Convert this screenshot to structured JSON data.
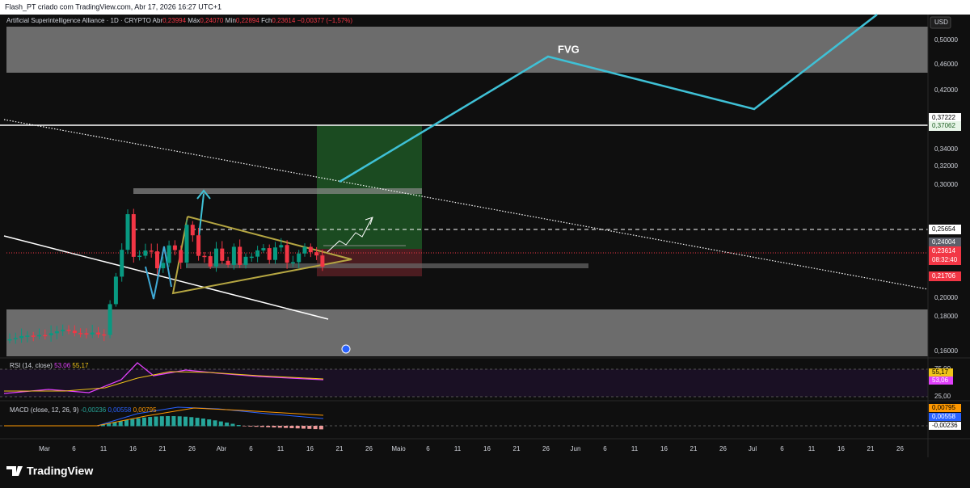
{
  "header": {
    "text": "Flash_PT criado com TradingView.com, Abr 17, 2026 16:27 UTC+1"
  },
  "symbol": {
    "name": "Artificial Superintelligence Alliance · 1D · CRYPTO",
    "open_label": "Abr",
    "open": "0,23994",
    "high_label": "Máx",
    "high": "0,24070",
    "low_label": "Mín",
    "low": "0,22894",
    "close_label": "Fch",
    "close": "0,23614",
    "change": "−0,00377 (−1,57%)"
  },
  "currency": "USD",
  "price_axis": [
    "0,50000",
    "0,46000",
    "0,42000",
    "0,34000",
    "0,32000",
    "0,30000",
    "0,20000",
    "0,18000",
    "0,16000"
  ],
  "price_badges": [
    "0,37222",
    "0,37062",
    "0,25654",
    "0,24004",
    "0,23614",
    "08:32:40",
    "0,21706"
  ],
  "annotation": "FVG",
  "rsi": {
    "label": "RSI (14, close)",
    "value1": "53,06",
    "value2": "55,17",
    "axis": [
      "75,00",
      "25,00"
    ],
    "badges": [
      "55,17",
      "53,06"
    ]
  },
  "macd": {
    "label": "MACD (close, 12, 26, 9)",
    "value1": "-0,00236",
    "value2": "0,00558",
    "value3": "0,00795",
    "badges": [
      "0,00795",
      "0,00558",
      "-0,00236"
    ]
  },
  "date_axis": [
    "Mar",
    "6",
    "11",
    "16",
    "21",
    "26",
    "Abr",
    "6",
    "11",
    "16",
    "21",
    "26",
    "Maio",
    "6",
    "11",
    "16",
    "21",
    "26",
    "Jun",
    "6",
    "11",
    "16",
    "21",
    "26",
    "Jul",
    "6",
    "11",
    "16",
    "21",
    "26"
  ],
  "footer": {
    "logo": "TradingView"
  }
}
